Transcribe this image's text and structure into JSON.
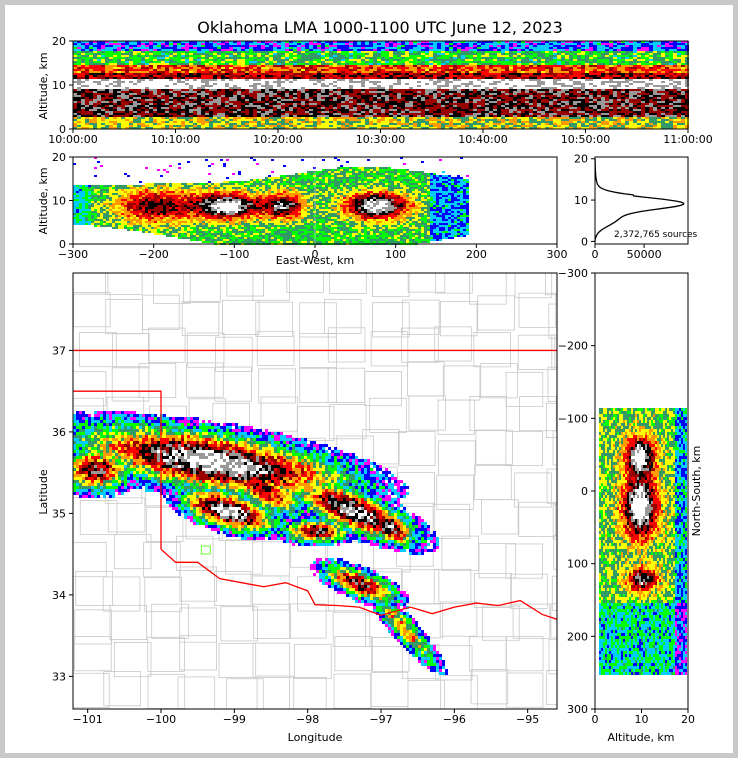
{
  "chart_data": {
    "type": "heatmap",
    "title": "Oklahoma LMA 1000-1100 UTC June 12, 2023",
    "panels": {
      "time_altitude": {
        "ylabel": "Altitude, km",
        "ylim": [
          0,
          20
        ],
        "yticks": [
          "0",
          "10",
          "20"
        ],
        "xticks": [
          "10:00:00",
          "10:10:00",
          "10:20:00",
          "10:30:00",
          "10:40:00",
          "10:50:00",
          "11:00:00"
        ]
      },
      "ew_altitude": {
        "xlabel": "East-West, km",
        "ylabel": "Altitude, km",
        "xlim": [
          -300,
          300
        ],
        "ylim": [
          0,
          20
        ],
        "xticks": [
          "−300",
          "−200",
          "−100",
          "0",
          "100",
          "200",
          "300"
        ],
        "yticks": [
          "0",
          "10",
          "20"
        ]
      },
      "altitude_histogram": {
        "xticks": [
          "0",
          "50000"
        ],
        "yticks": [
          "0",
          "10",
          "20"
        ],
        "annotation": "2,372,765 sources"
      },
      "plan_view": {
        "xlabel": "Longitude",
        "ylabel": "Latitude",
        "xlim": [
          -101.2,
          -94.6
        ],
        "ylim": [
          32.6,
          37.95
        ],
        "xticks": [
          "−101",
          "−100",
          "−99",
          "−98",
          "−97",
          "−96",
          "−95"
        ],
        "yticks": [
          "33",
          "34",
          "35",
          "36",
          "37"
        ]
      },
      "ns_altitude": {
        "xlabel": "Altitude, km",
        "ylabel": "North-South, km",
        "xlim": [
          0,
          20
        ],
        "ylim": [
          -300,
          300
        ],
        "xticks": [
          "0",
          "10",
          "20"
        ],
        "yticks": [
          "−300",
          "−200",
          "−100",
          "0",
          "100",
          "200",
          "300"
        ]
      }
    },
    "density_colors": [
      "#ff00ff",
      "#0000ff",
      "#00ccff",
      "#00ff00",
      "#339966",
      "#ffff00",
      "#ff9900",
      "#ff0000",
      "#990000",
      "#000000",
      "#999999",
      "#ffffff"
    ],
    "boundary_colors": {
      "state": "#ff0000",
      "county": "#c8c8c8",
      "highlight": "#66ff33"
    }
  }
}
